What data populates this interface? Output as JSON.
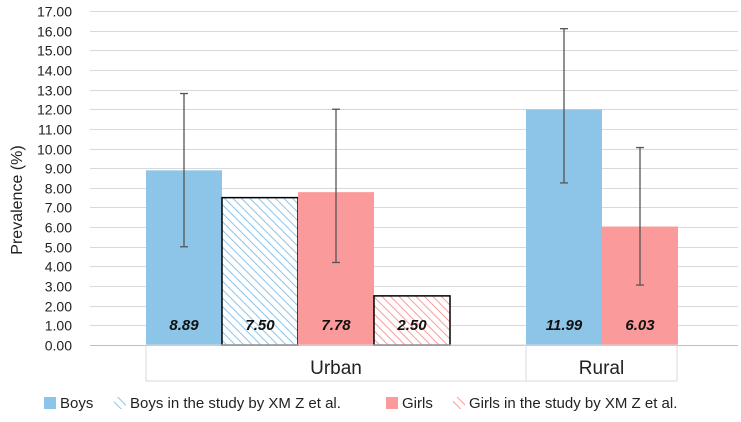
{
  "chart_data": {
    "type": "bar",
    "title": "",
    "xlabel": "",
    "ylabel": "Prevalence (%)",
    "ylim": [
      0,
      17
    ],
    "ytick_step": 1,
    "ytick_labels": [
      "0.00",
      "1.00",
      "2.00",
      "3.00",
      "4.00",
      "5.00",
      "6.00",
      "7.00",
      "8.00",
      "9.00",
      "10.00",
      "11.00",
      "12.00",
      "13.00",
      "14.00",
      "15.00",
      "16.00",
      "17.00"
    ],
    "grid": true,
    "legend_position": "bottom",
    "categories": [
      "Urban",
      "Rural"
    ],
    "groups": [
      {
        "category": "Urban",
        "bars": [
          {
            "series": "Boys",
            "value": 8.89,
            "label": "8.89",
            "error": [
              5.0,
              12.8
            ]
          },
          {
            "series": "Boys in the study by XM Z et al.",
            "value": 7.5,
            "label": "7.50",
            "error": null
          },
          {
            "series": "Girls",
            "value": 7.78,
            "label": "7.78",
            "error": [
              4.2,
              12.0
            ]
          },
          {
            "series": "Girls in the study by XM Z et al.",
            "value": 2.5,
            "label": "2.50",
            "error": null
          }
        ]
      },
      {
        "category": "Rural",
        "bars": [
          {
            "series": "Boys",
            "value": 11.99,
            "label": "11.99",
            "error": [
              8.25,
              16.1
            ]
          },
          {
            "series": "Girls",
            "value": 6.03,
            "label": "6.03",
            "error": [
              3.05,
              10.05
            ]
          }
        ]
      }
    ],
    "series": [
      {
        "name": "Boys",
        "color": "#8dc5e9",
        "hatched": false
      },
      {
        "name": "Boys in the study by XM Z et al.",
        "color": "#8dc5e9",
        "hatched": true
      },
      {
        "name": "Girls",
        "color": "#fb9a9a",
        "hatched": false
      },
      {
        "name": "Girls in the study by XM Z et al.",
        "color": "#fb9a9a",
        "hatched": true
      }
    ]
  }
}
